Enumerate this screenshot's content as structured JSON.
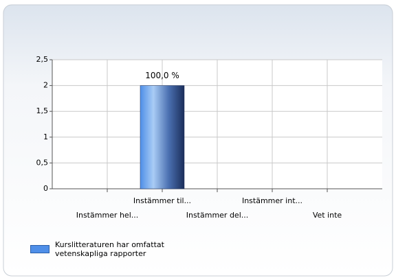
{
  "chart_data": {
    "type": "bar",
    "categories": [
      "Instämmer hel...",
      "Instämmer til...",
      "Instämmer del...",
      "Instämmer int...",
      "Vet inte"
    ],
    "series": [
      {
        "name": "Kurslitteraturen har omfattat vetenskapliga rapporter",
        "color": "#4f8fe8",
        "values": [
          0,
          2,
          0,
          0,
          0
        ]
      }
    ],
    "percentages": [
      null,
      100,
      null,
      null,
      null
    ],
    "percentage_labels": [
      null,
      "100,0 %",
      null,
      null,
      null
    ],
    "ylim": [
      0,
      2.5
    ],
    "yticks": [
      0,
      {
        "value": 0.5,
        "label": "0,5"
      },
      1,
      {
        "value": 1.5,
        "label": "1,5"
      },
      2,
      {
        "value": 2.5,
        "label": "2,5"
      }
    ],
    "grid": true,
    "legend": "bottom-left"
  }
}
